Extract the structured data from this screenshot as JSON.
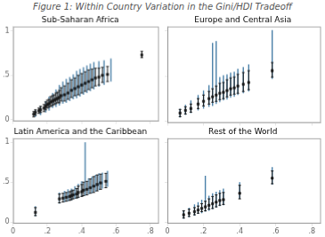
{
  "title": "Figure 1: Within Country Variation in the Gini/HDI Tradeoff",
  "chart_data": [
    {
      "type": "scatter",
      "title": "Sub-Saharan Africa",
      "xlim": [
        0.0,
        0.85
      ],
      "ylim": [
        -0.02,
        1.05
      ],
      "xticks": [
        0,
        {
          "value": 0.2,
          "label": ".2"
        },
        {
          "value": 0.4,
          "label": ".4"
        },
        {
          "value": 0.6,
          "label": ".6"
        },
        {
          "value": 0.8,
          "label": ".8"
        }
      ],
      "yticks": [
        0,
        {
          "value": 0.5,
          "label": ".5"
        },
        1
      ],
      "grid": false,
      "tick_labels": "y",
      "series": [
        {
          "color": "#4a80a8",
          "marker": "none",
          "x": [
            0.13,
            0.16,
            0.19,
            0.21,
            0.23,
            0.25,
            0.27,
            0.29,
            0.31,
            0.33,
            0.35,
            0.37,
            0.39,
            0.41,
            0.43,
            0.45,
            0.47,
            0.5,
            0.53,
            0.57
          ],
          "values": [
            0.07,
            0.1,
            0.14,
            0.17,
            0.2,
            0.22,
            0.25,
            0.27,
            0.29,
            0.31,
            0.33,
            0.35,
            0.37,
            0.39,
            0.41,
            0.43,
            0.45,
            0.47,
            0.49,
            0.52
          ],
          "yerr_lo": [
            0.04,
            0.05,
            0.06,
            0.07,
            0.07,
            0.08,
            0.09,
            0.09,
            0.1,
            0.1,
            0.1,
            0.11,
            0.11,
            0.11,
            0.11,
            0.11,
            0.11,
            0.1,
            0.1,
            0.09
          ],
          "yerr_hi": [
            0.04,
            0.05,
            0.07,
            0.09,
            0.1,
            0.12,
            0.14,
            0.16,
            0.17,
            0.17,
            0.18,
            0.2,
            0.2,
            0.2,
            0.2,
            0.2,
            0.2,
            0.19,
            0.18,
            0.17
          ]
        },
        {
          "color": "#1a1a1a",
          "marker": "square",
          "x": [
            0.12,
            0.13,
            0.15,
            0.16,
            0.18,
            0.19,
            0.2,
            0.21,
            0.22,
            0.23,
            0.24,
            0.25,
            0.26,
            0.27,
            0.28,
            0.3,
            0.32,
            0.34,
            0.36,
            0.38,
            0.4,
            0.42,
            0.44,
            0.46,
            0.48,
            0.5,
            0.52,
            0.55,
            0.75
          ],
          "values": [
            0.06,
            0.08,
            0.1,
            0.11,
            0.13,
            0.15,
            0.17,
            0.18,
            0.2,
            0.21,
            0.22,
            0.23,
            0.24,
            0.25,
            0.27,
            0.28,
            0.3,
            0.33,
            0.35,
            0.37,
            0.39,
            0.41,
            0.43,
            0.45,
            0.47,
            0.48,
            0.5,
            0.51,
            0.73
          ],
          "yerr_lo": [
            0.03,
            0.03,
            0.03,
            0.03,
            0.04,
            0.04,
            0.04,
            0.04,
            0.05,
            0.05,
            0.05,
            0.05,
            0.05,
            0.06,
            0.06,
            0.07,
            0.07,
            0.08,
            0.08,
            0.09,
            0.09,
            0.09,
            0.09,
            0.09,
            0.09,
            0.09,
            0.08,
            0.08,
            0.03
          ],
          "yerr_hi": [
            0.03,
            0.03,
            0.03,
            0.04,
            0.04,
            0.05,
            0.05,
            0.05,
            0.06,
            0.06,
            0.06,
            0.07,
            0.07,
            0.08,
            0.09,
            0.1,
            0.11,
            0.12,
            0.12,
            0.13,
            0.13,
            0.13,
            0.13,
            0.12,
            0.11,
            0.1,
            0.09,
            0.09,
            0.04
          ]
        }
      ]
    },
    {
      "type": "scatter",
      "title": "Europe and Central Asia",
      "xlim": [
        0.0,
        0.85
      ],
      "ylim": [
        -0.02,
        1.05
      ],
      "xticks": [
        0,
        {
          "value": 0.2,
          "label": ".2"
        },
        {
          "value": 0.4,
          "label": ".4"
        },
        {
          "value": 0.6,
          "label": ".6"
        },
        {
          "value": 0.8,
          "label": ".8"
        }
      ],
      "yticks": [
        0,
        {
          "value": 0.5,
          "label": ".5"
        },
        1
      ],
      "grid": false,
      "tick_labels": false,
      "series": [
        {
          "color": "#4a80a8",
          "marker": "none",
          "x": [
            0.07,
            0.1,
            0.13,
            0.17,
            0.2,
            0.23,
            0.25,
            0.27,
            0.29,
            0.31,
            0.33,
            0.35,
            0.37,
            0.39,
            0.42,
            0.45,
            0.58
          ],
          "values": [
            0.09,
            0.12,
            0.15,
            0.19,
            0.22,
            0.25,
            0.27,
            0.29,
            0.31,
            0.33,
            0.34,
            0.36,
            0.37,
            0.39,
            0.41,
            0.43,
            0.56
          ],
          "yerr_lo": [
            0.05,
            0.05,
            0.06,
            0.07,
            0.08,
            0.09,
            0.1,
            0.1,
            0.1,
            0.1,
            0.1,
            0.1,
            0.1,
            0.1,
            0.1,
            0.1,
            0.09
          ],
          "yerr_hi": [
            0.05,
            0.06,
            0.08,
            0.1,
            0.12,
            0.15,
            0.6,
            0.6,
            0.18,
            0.18,
            0.18,
            0.18,
            0.18,
            0.19,
            0.19,
            0.2,
            0.45
          ]
        },
        {
          "color": "#1a1a1a",
          "marker": "square",
          "x": [
            0.07,
            0.1,
            0.13,
            0.17,
            0.2,
            0.23,
            0.25,
            0.27,
            0.29,
            0.31,
            0.33,
            0.35,
            0.37,
            0.39,
            0.42,
            0.45,
            0.58
          ],
          "values": [
            0.09,
            0.12,
            0.14,
            0.19,
            0.22,
            0.25,
            0.27,
            0.29,
            0.31,
            0.32,
            0.34,
            0.36,
            0.37,
            0.39,
            0.41,
            0.43,
            0.56
          ],
          "yerr_lo": [
            0.04,
            0.04,
            0.04,
            0.05,
            0.05,
            0.06,
            0.06,
            0.07,
            0.07,
            0.07,
            0.07,
            0.07,
            0.07,
            0.08,
            0.08,
            0.08,
            0.07
          ],
          "yerr_hi": [
            0.04,
            0.04,
            0.05,
            0.06,
            0.07,
            0.08,
            0.09,
            0.1,
            0.11,
            0.11,
            0.12,
            0.12,
            0.12,
            0.13,
            0.13,
            0.13,
            0.09
          ]
        }
      ]
    },
    {
      "type": "scatter",
      "title": "Latin America and the Caribbean",
      "xlim": [
        0.0,
        0.85
      ],
      "ylim": [
        -0.02,
        1.05
      ],
      "xticks": [
        0,
        {
          "value": 0.2,
          "label": ".2"
        },
        {
          "value": 0.4,
          "label": ".4"
        },
        {
          "value": 0.6,
          "label": ".6"
        },
        {
          "value": 0.8,
          "label": ".8"
        }
      ],
      "yticks": [
        0,
        {
          "value": 0.5,
          "label": ".5"
        },
        1
      ],
      "grid": false,
      "series": [
        {
          "color": "#4a80a8",
          "marker": "none",
          "x": [
            0.13,
            0.27,
            0.3,
            0.32,
            0.34,
            0.36,
            0.38,
            0.4,
            0.42,
            0.44,
            0.46,
            0.48,
            0.5,
            0.52,
            0.55
          ],
          "values": [
            0.12,
            0.29,
            0.31,
            0.32,
            0.33,
            0.35,
            0.37,
            0.39,
            0.4,
            0.42,
            0.44,
            0.46,
            0.48,
            0.5,
            0.52
          ],
          "yerr_lo": [
            0.05,
            0.06,
            0.06,
            0.06,
            0.06,
            0.06,
            0.07,
            0.07,
            0.07,
            0.07,
            0.08,
            0.08,
            0.08,
            0.08,
            0.08
          ],
          "yerr_hi": [
            0.08,
            0.08,
            0.08,
            0.09,
            0.09,
            0.1,
            0.11,
            0.12,
            0.6,
            0.13,
            0.13,
            0.13,
            0.13,
            0.12,
            0.12
          ]
        },
        {
          "color": "#1a1a1a",
          "marker": "square",
          "x": [
            0.13,
            0.27,
            0.29,
            0.31,
            0.33,
            0.34,
            0.35,
            0.37,
            0.38,
            0.4,
            0.41,
            0.43,
            0.45,
            0.47,
            0.49,
            0.51,
            0.54
          ],
          "values": [
            0.12,
            0.29,
            0.3,
            0.31,
            0.32,
            0.33,
            0.34,
            0.35,
            0.37,
            0.38,
            0.4,
            0.41,
            0.43,
            0.45,
            0.47,
            0.49,
            0.51
          ],
          "yerr_lo": [
            0.04,
            0.05,
            0.05,
            0.05,
            0.05,
            0.05,
            0.05,
            0.05,
            0.06,
            0.06,
            0.07,
            0.07,
            0.07,
            0.08,
            0.08,
            0.08,
            0.08
          ],
          "yerr_hi": [
            0.06,
            0.06,
            0.06,
            0.06,
            0.06,
            0.06,
            0.06,
            0.07,
            0.08,
            0.09,
            0.1,
            0.1,
            0.11,
            0.12,
            0.12,
            0.11,
            0.1
          ]
        }
      ]
    },
    {
      "type": "scatter",
      "title": "Rest of the World",
      "xlim": [
        0.0,
        0.85
      ],
      "ylim": [
        -0.02,
        1.05
      ],
      "xticks": [
        0,
        {
          "value": 0.2,
          "label": ".2"
        },
        {
          "value": 0.4,
          "label": ".4"
        },
        {
          "value": 0.6,
          "label": ".6"
        },
        {
          "value": 0.8,
          "label": ".8"
        }
      ],
      "yticks": [
        0,
        {
          "value": 0.5,
          "label": ".5"
        },
        1
      ],
      "grid": false,
      "tick_labels": "x",
      "series": [
        {
          "color": "#4a80a8",
          "marker": "none",
          "x": [
            0.09,
            0.12,
            0.15,
            0.17,
            0.19,
            0.21,
            0.23,
            0.25,
            0.27,
            0.29,
            0.31,
            0.4,
            0.58
          ],
          "values": [
            0.09,
            0.11,
            0.14,
            0.16,
            0.18,
            0.2,
            0.21,
            0.23,
            0.25,
            0.27,
            0.28,
            0.36,
            0.55
          ],
          "yerr_lo": [
            0.05,
            0.05,
            0.06,
            0.06,
            0.07,
            0.07,
            0.07,
            0.07,
            0.07,
            0.07,
            0.07,
            0.07,
            0.08
          ],
          "yerr_hi": [
            0.06,
            0.07,
            0.08,
            0.09,
            0.1,
            0.38,
            0.12,
            0.13,
            0.13,
            0.13,
            0.14,
            0.14,
            0.14
          ]
        },
        {
          "color": "#1a1a1a",
          "marker": "square",
          "x": [
            0.09,
            0.12,
            0.15,
            0.17,
            0.19,
            0.21,
            0.23,
            0.25,
            0.27,
            0.29,
            0.31,
            0.4,
            0.58
          ],
          "values": [
            0.09,
            0.11,
            0.13,
            0.15,
            0.17,
            0.19,
            0.21,
            0.23,
            0.25,
            0.27,
            0.28,
            0.36,
            0.55
          ],
          "yerr_lo": [
            0.04,
            0.04,
            0.04,
            0.04,
            0.04,
            0.05,
            0.05,
            0.06,
            0.06,
            0.06,
            0.06,
            0.07,
            0.07
          ],
          "yerr_hi": [
            0.05,
            0.05,
            0.05,
            0.05,
            0.06,
            0.07,
            0.08,
            0.09,
            0.09,
            0.09,
            0.09,
            0.1,
            0.09
          ]
        }
      ]
    }
  ]
}
